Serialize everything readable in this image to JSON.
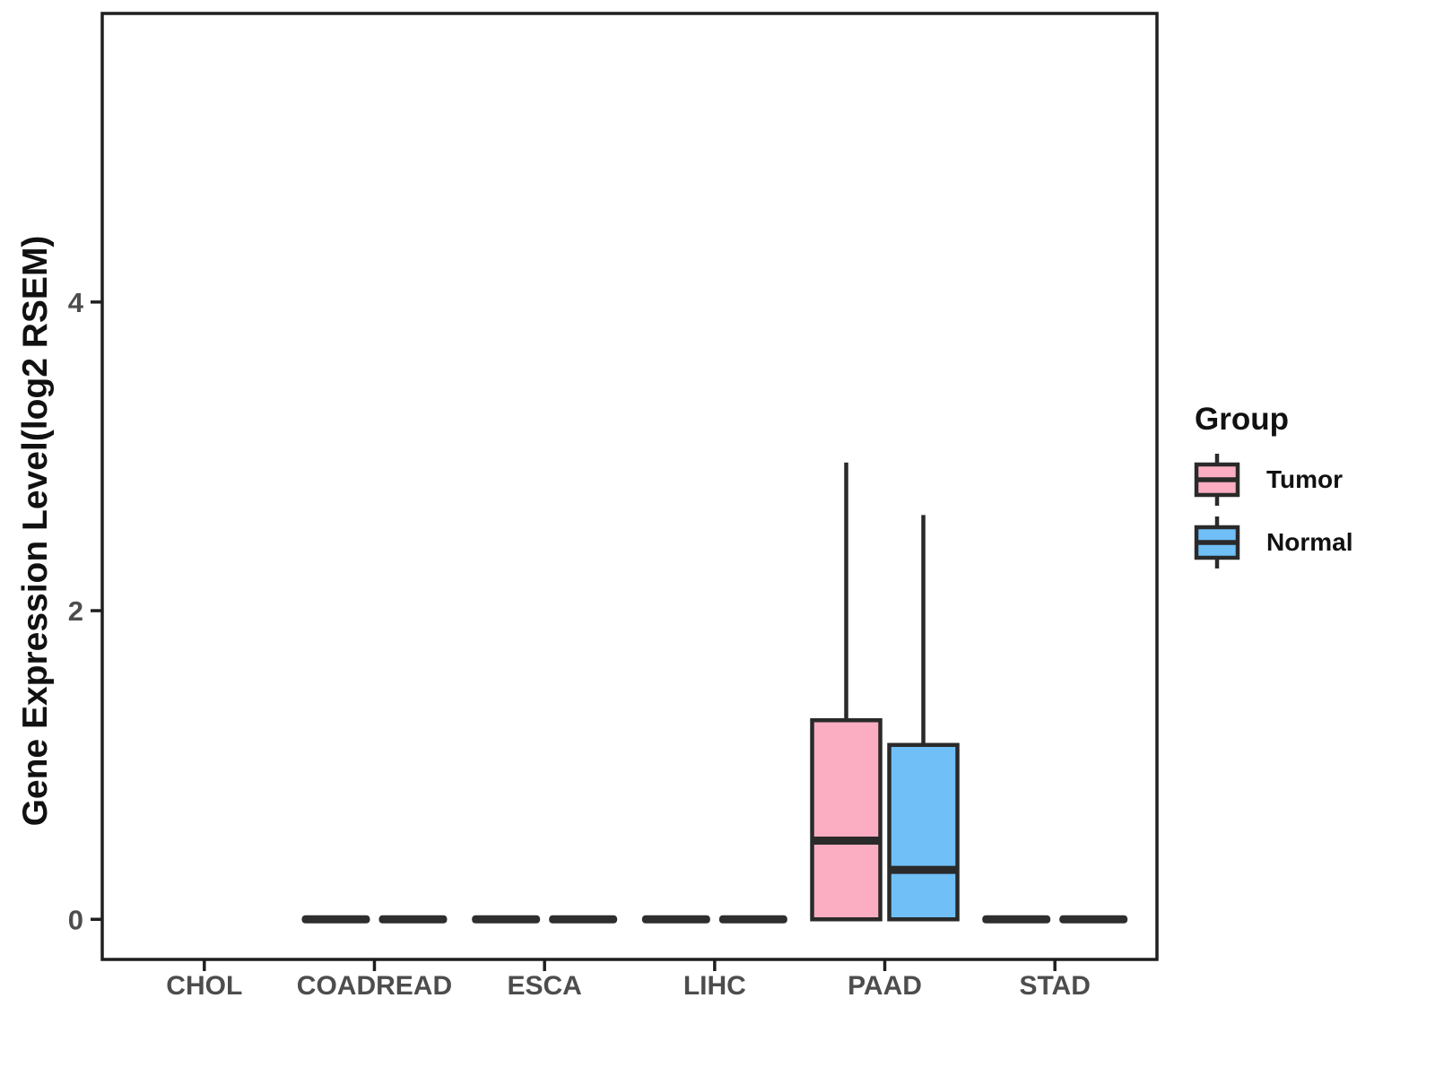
{
  "chart_data": {
    "type": "boxplot",
    "title": "",
    "xlabel": "",
    "ylabel": "Gene Expression Level(log2 RSEM)",
    "categories": [
      "CHOL",
      "COADREAD",
      "ESCA",
      "LIHC",
      "PAAD",
      "STAD"
    ],
    "yticks": [
      0,
      2,
      4
    ],
    "ylim": [
      -0.26,
      5.87
    ],
    "grid": "off",
    "legend": {
      "title": "Group",
      "position": "right"
    },
    "groups": [
      {
        "name": "Tumor",
        "color": "#FBAEC1"
      },
      {
        "name": "Normal",
        "color": "#70BFF7"
      }
    ],
    "series": [
      {
        "category": "CHOL",
        "group": "Tumor",
        "stats": null
      },
      {
        "category": "CHOL",
        "group": "Normal",
        "stats": null
      },
      {
        "category": "COADREAD",
        "group": "Tumor",
        "stats": {
          "min": 0,
          "q1": 0,
          "median": 0,
          "q3": 0,
          "max": 0
        }
      },
      {
        "category": "COADREAD",
        "group": "Normal",
        "stats": {
          "min": 0,
          "q1": 0,
          "median": 0,
          "q3": 0,
          "max": 0
        }
      },
      {
        "category": "ESCA",
        "group": "Tumor",
        "stats": {
          "min": 0,
          "q1": 0,
          "median": 0,
          "q3": 0,
          "max": 0
        }
      },
      {
        "category": "ESCA",
        "group": "Normal",
        "stats": {
          "min": 0,
          "q1": 0,
          "median": 0,
          "q3": 0,
          "max": 0
        }
      },
      {
        "category": "LIHC",
        "group": "Tumor",
        "stats": {
          "min": 0,
          "q1": 0,
          "median": 0,
          "q3": 0,
          "max": 0
        }
      },
      {
        "category": "LIHC",
        "group": "Normal",
        "stats": {
          "min": 0,
          "q1": 0,
          "median": 0,
          "q3": 0,
          "max": 0
        }
      },
      {
        "category": "PAAD",
        "group": "Tumor",
        "stats": {
          "min": 0,
          "q1": 0,
          "median": 0.51,
          "q3": 1.29,
          "max": 2.96
        }
      },
      {
        "category": "PAAD",
        "group": "Normal",
        "stats": {
          "min": 0,
          "q1": 0,
          "median": 0.32,
          "q3": 1.13,
          "max": 2.62
        }
      },
      {
        "category": "STAD",
        "group": "Tumor",
        "stats": {
          "min": 0,
          "q1": 0,
          "median": 0,
          "q3": 0,
          "max": 0
        }
      },
      {
        "category": "STAD",
        "group": "Normal",
        "stats": {
          "min": 0,
          "q1": 0,
          "median": 0,
          "q3": 0,
          "max": 0
        }
      }
    ],
    "colors": {
      "box_edge": "#2A2A2A",
      "panel_border": "#1F1F1F",
      "tick_label": "#4D4D4D",
      "zero_dash": "#2E2E2E"
    }
  }
}
